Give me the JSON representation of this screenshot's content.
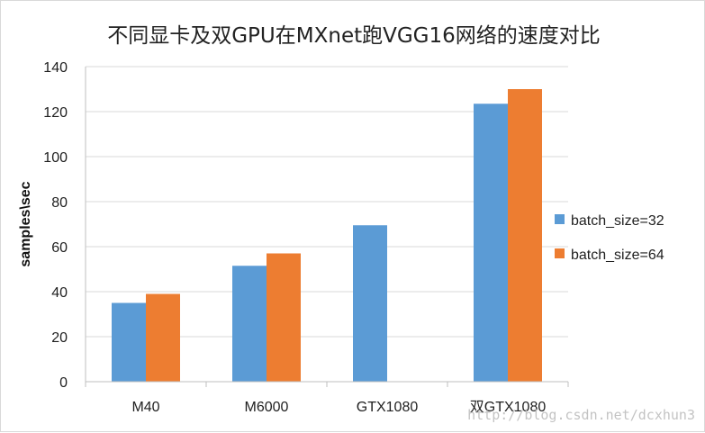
{
  "chart_data": {
    "type": "bar",
    "title": "不同显卡及双GPU在MXnet跑VGG16网络的速度对比",
    "xlabel": "",
    "ylabel": "samples\\sec",
    "categories": [
      "M40",
      "M6000",
      "GTX1080",
      "双GTX1080"
    ],
    "series": [
      {
        "name": "batch_size=32",
        "values": [
          35,
          51.5,
          69.5,
          123.5
        ],
        "color": "#5b9bd5"
      },
      {
        "name": "batch_size=64",
        "values": [
          39,
          57,
          null,
          130
        ],
        "color": "#ed7d31"
      }
    ],
    "ylim": [
      0,
      140
    ],
    "yticks": [
      0,
      20,
      40,
      60,
      80,
      100,
      120,
      140
    ],
    "grid": true,
    "legend": "right"
  },
  "watermark": "http://blog.csdn.net/dcxhun3"
}
